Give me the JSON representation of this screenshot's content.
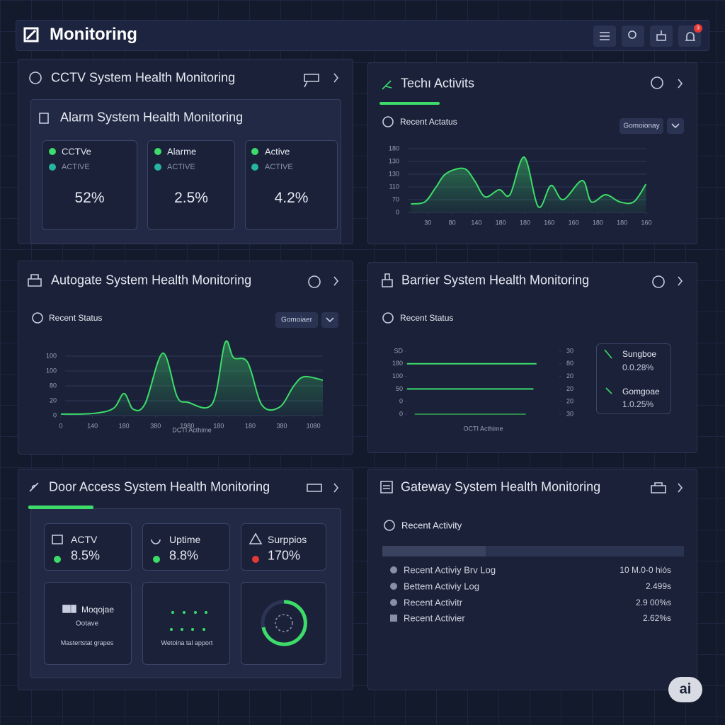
{
  "header": {
    "title": "Monitoring",
    "badge": "3"
  },
  "cctv": {
    "title": "CCTV System Health Monitoring",
    "subtitle": "Alarm System Health Monitoring",
    "cards": [
      {
        "name": "CCTVe",
        "status": "ACTIVE",
        "value": "52%"
      },
      {
        "name": "Alarme",
        "status": "ACTIVE",
        "value": "2.5%"
      },
      {
        "name": "Active",
        "status": "ACTIVE",
        "value": "4.2%"
      }
    ]
  },
  "tech": {
    "title": "Techı Activits",
    "section": "Recent Actatus",
    "dropdown": "Gomoionay"
  },
  "autogate": {
    "title": "Autogate System Health Monitoring",
    "section": "Recent Status",
    "dropdown": "Gomoiaer"
  },
  "barrier": {
    "title": "Barrier System Health Monitoring",
    "section": "Recent Status",
    "legend": [
      {
        "label": "Sungboe",
        "value": "0.0.28%"
      },
      {
        "label": "Gomgoae",
        "value": "1.0.25%"
      }
    ]
  },
  "door": {
    "title": "Door Access System Health Monitoring",
    "stats": [
      {
        "label": "ACTV",
        "value": "8.5%"
      },
      {
        "label": "Uptime",
        "value": "8.8%"
      },
      {
        "label": "Surppios",
        "value": "170%"
      }
    ],
    "tiles": [
      {
        "title": "Moqojae",
        "subtitle": "Ootave",
        "caption": "Mastertstat grapes"
      },
      {
        "caption": "Wetoina tal apport"
      }
    ]
  },
  "gateway": {
    "title": "Gateway System Health Monitoring",
    "section": "Recent Activity",
    "rows": [
      [
        "Recent Activiy Brv Log",
        "10 M.0-0 hiós"
      ],
      [
        "Bettem Activiy Log",
        "2.499s"
      ],
      [
        "Recent Activitr",
        "2.9 00%s"
      ],
      [
        "Recent Activier",
        "2.62%s"
      ]
    ]
  },
  "badge": "ai",
  "chart_data": [
    {
      "type": "area",
      "color": "#3ddc6a",
      "grid": true,
      "xlim": [
        -1,
        9
      ],
      "ylim": [
        0,
        5
      ],
      "yticks": [
        0,
        {
          "value": 1,
          "label": "70"
        },
        {
          "value": 2,
          "label": "110"
        },
        {
          "value": 3,
          "label": "130"
        },
        {
          "value": 4,
          "label": "130"
        },
        {
          "value": 5,
          "label": "180"
        }
      ],
      "xticks": [
        {
          "value": 0,
          "label": "30"
        },
        {
          "value": 1,
          "label": "80"
        },
        {
          "value": 2,
          "label": "140"
        },
        {
          "value": 3,
          "label": "180"
        },
        {
          "value": 4,
          "label": "180"
        },
        {
          "value": 5,
          "label": "160"
        },
        {
          "value": 6,
          "label": "160"
        },
        {
          "value": 7,
          "label": "180"
        },
        {
          "value": 8,
          "label": "180"
        },
        {
          "value": 9,
          "label": "160"
        }
      ],
      "x": [
        -0.7,
        -0.12,
        0.32,
        0.76,
        1.49,
        1.92,
        2.36,
        2.94,
        3.38,
        3.97,
        4.55,
        5.07,
        5.57,
        6.36,
        6.73,
        7.32,
        7.9,
        8.48,
        8.98
      ],
      "values": [
        0.67,
        0.83,
        1.94,
        3.06,
        3.44,
        2.5,
        1.22,
        1.78,
        1.39,
        4.33,
        0.44,
        2.11,
        1.0,
        2.5,
        0.83,
        1.39,
        0.83,
        0.83,
        2.22
      ]
    },
    {
      "type": "area",
      "color": "#3ddc6a",
      "grid": true,
      "xlim": [
        0,
        8.3
      ],
      "ylim": [
        0,
        5
      ],
      "xlabel": "DCTI Acthime",
      "yticks": [
        0,
        {
          "value": 1,
          "label": "20"
        },
        {
          "value": 2,
          "label": "80"
        },
        {
          "value": 3,
          "label": "100"
        },
        {
          "value": 4,
          "label": "100"
        }
      ],
      "xticks": [
        0,
        {
          "value": 1,
          "label": "140"
        },
        {
          "value": 2,
          "label": "180"
        },
        {
          "value": 3,
          "label": "380"
        },
        {
          "value": 4,
          "label": "1980"
        },
        {
          "value": 5,
          "label": "180"
        },
        {
          "value": 6,
          "label": "180"
        },
        {
          "value": 7,
          "label": "380"
        },
        {
          "value": 8,
          "label": "1080"
        }
      ],
      "x": [
        0,
        1.0,
        1.66,
        2.0,
        2.29,
        2.67,
        3.23,
        3.68,
        4.02,
        4.8,
        5.2,
        5.47,
        5.92,
        6.37,
        6.93,
        7.38,
        7.71,
        8.3
      ],
      "values": [
        0.1,
        0.14,
        0.48,
        1.48,
        0.43,
        0.81,
        4.2,
        1.29,
        0.9,
        0.81,
        4.9,
        3.9,
        3.57,
        0.71,
        0.57,
        2.0,
        2.62,
        2.38
      ]
    },
    {
      "type": "line",
      "grid": false,
      "xlim": [
        0,
        1
      ],
      "ylim": [
        0,
        5
      ],
      "y2lim": [
        0,
        5
      ],
      "xlabel": "OCTI Acthime",
      "yticks": [
        0,
        {
          "value": 1,
          "label": "0"
        },
        {
          "value": 2,
          "label": "50"
        },
        {
          "value": 3,
          "label": "100"
        },
        {
          "value": 4,
          "label": "180"
        },
        {
          "value": 5,
          "label": "SD"
        }
      ],
      "y2ticks": [
        {
          "value": 0,
          "label": "30"
        },
        {
          "value": 1,
          "label": "20"
        },
        {
          "value": 2,
          "label": "20"
        },
        {
          "value": 3,
          "label": "20"
        },
        {
          "value": 4,
          "label": "80"
        },
        {
          "value": 5,
          "label": "30"
        }
      ],
      "series": [
        {
          "color": "#3ddc6a",
          "x": [
            0,
            0.85
          ],
          "values": [
            4,
            4
          ]
        },
        {
          "color": "#3ddc6a",
          "x": [
            0,
            0.83
          ],
          "values": [
            2,
            2
          ]
        },
        {
          "color": "#2f8a4e",
          "x": [
            0.05,
            0.78
          ],
          "values": [
            0,
            0
          ]
        }
      ]
    }
  ]
}
